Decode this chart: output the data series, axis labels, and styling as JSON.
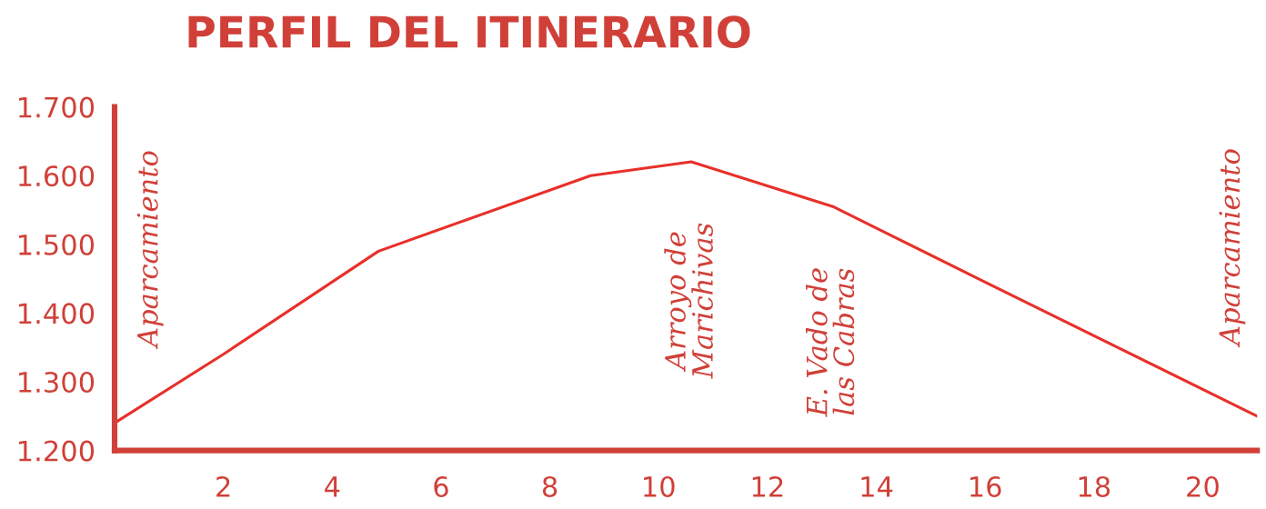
{
  "chart_data": {
    "type": "line",
    "title": "PERFIL DEL ITINERARIO",
    "x": [
      0,
      2,
      4.85,
      8.75,
      10.6,
      13.2,
      16,
      21
    ],
    "series": [
      {
        "color": "#e8302a",
        "values": [
          1240,
          1340,
          1490,
          1600,
          1620,
          1555,
          1445,
          1250
        ]
      }
    ],
    "xlim": [
      0,
      21
    ],
    "xticks": [
      2,
      4,
      6,
      8,
      10,
      12,
      14,
      16,
      18,
      20
    ],
    "ylim": [
      1200,
      1700
    ],
    "yticks": [
      {
        "value": 1200,
        "label": "1.200"
      },
      {
        "value": 1300,
        "label": "1.300"
      },
      {
        "value": 1400,
        "label": "1.400"
      },
      {
        "value": 1500,
        "label": "1.500"
      },
      {
        "value": 1600,
        "label": "1.600"
      },
      {
        "value": 1700,
        "label": "1.700"
      }
    ],
    "annotations": [
      {
        "text": "Aparcamiento",
        "x": 0,
        "y": 1240
      },
      {
        "text": "Arroyo de\nMarichivas",
        "x": 10.6,
        "y": 1620
      },
      {
        "text": "E. Vado de\nlas Cabras",
        "x": 13.2,
        "y": 1555
      },
      {
        "text": "Aparcamiento",
        "x": 21,
        "y": 1250
      }
    ],
    "grid": false,
    "marker": "none",
    "line_style": "solid"
  }
}
